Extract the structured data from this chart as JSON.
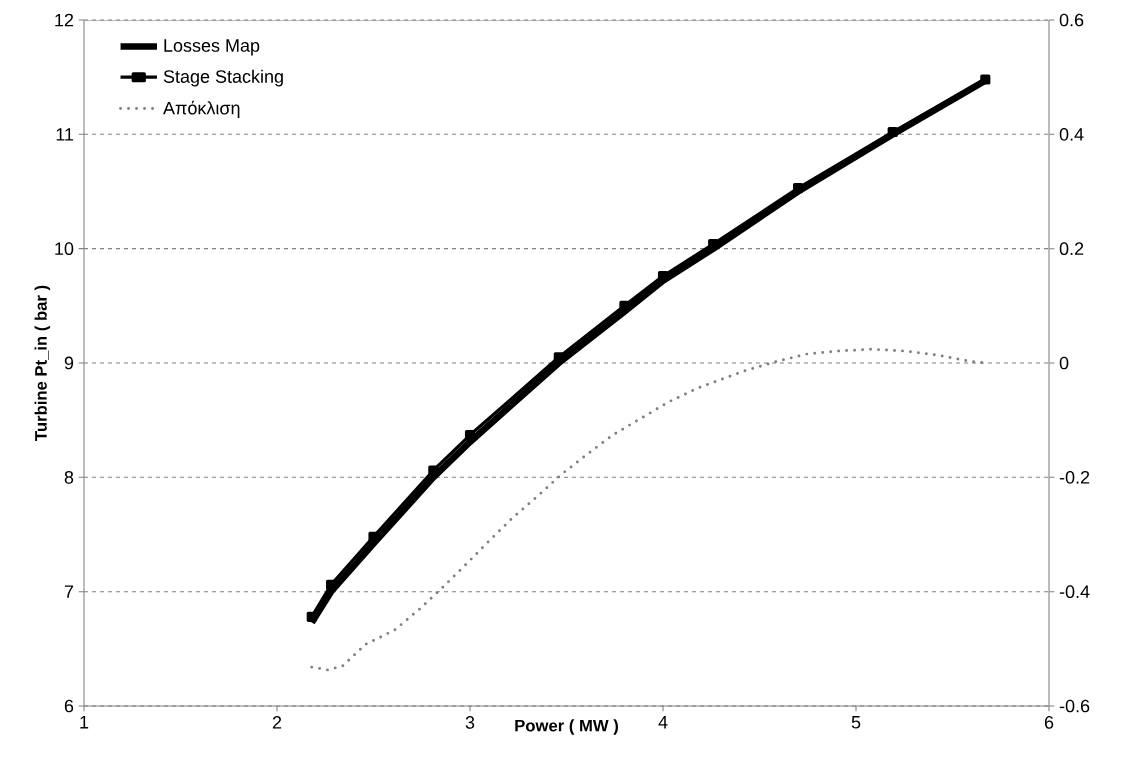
{
  "chart_data": {
    "type": "line",
    "xlabel": "Power  ( MW )",
    "ylabel": "Turbine Pt_in  ( bar )",
    "xlim": [
      1,
      6
    ],
    "xticks": [
      1,
      2,
      3,
      4,
      5,
      6
    ],
    "ylim": [
      6,
      12
    ],
    "yticks": [
      6,
      7,
      8,
      9,
      10,
      11,
      12
    ],
    "y2lim": [
      -0.6,
      0.6
    ],
    "y2ticks": [
      -0.6,
      -0.4,
      -0.2,
      0,
      0.2,
      0.4,
      0.6
    ],
    "grid": "y",
    "legend": "top left",
    "series": [
      {
        "name": "Losses Map",
        "color": "#000000",
        "marker": "none",
        "line_style": "solid",
        "x": [
          2.18,
          2.28,
          2.5,
          2.81,
          3.0,
          3.46,
          3.8,
          4.0,
          4.26,
          4.7,
          5.19,
          5.67
        ],
        "values": [
          6.73,
          7,
          7.42,
          8,
          8.31,
          9,
          9.45,
          9.72,
          10,
          10.5,
          11,
          11.47
        ]
      },
      {
        "name": "Stage Stacking",
        "color": "#000000",
        "marker": "square",
        "line_style": "solid",
        "x": [
          2.18,
          2.28,
          2.5,
          2.81,
          3.0,
          3.46,
          3.8,
          4.0,
          4.26,
          4.7,
          5.19,
          5.67
        ],
        "values": [
          6.78,
          7.06,
          7.48,
          8.06,
          8.37,
          9.05,
          9.5,
          9.76,
          10.04,
          10.53,
          11.02,
          11.48
        ]
      },
      {
        "name": "Απόκλιση",
        "color": "#808080",
        "marker": "none",
        "line_style": "dotted",
        "axis": "y2",
        "x": [
          2.18,
          2.26,
          2.34,
          2.46,
          2.61,
          2.74,
          2.86,
          2.98,
          3.1,
          3.22,
          3.35,
          3.47,
          3.61,
          3.74,
          3.89,
          4.03,
          4.18,
          4.42,
          4.58,
          4.75,
          4.91,
          5.08,
          5.25,
          5.42,
          5.59,
          5.67
        ],
        "values": [
          -0.532,
          -0.537,
          -0.53,
          -0.492,
          -0.467,
          -0.43,
          -0.392,
          -0.352,
          -0.311,
          -0.271,
          -0.233,
          -0.196,
          -0.159,
          -0.126,
          -0.096,
          -0.068,
          -0.044,
          -0.014,
          0.002,
          0.016,
          0.021,
          0.024,
          0.021,
          0.014,
          0.003,
          0.0
        ]
      }
    ]
  }
}
